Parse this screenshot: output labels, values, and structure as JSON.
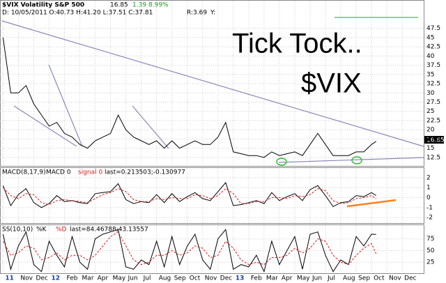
{
  "header": {
    "title": "$VIX Volatility S&P 500",
    "change": "1.39",
    "change_pct": "8.99%",
    "ohlc": "D: 10/05/2011 O:40.73 H:41.20 L:37.51 C:37.81",
    "range": "R:3.69",
    "y_label": "Y:"
  },
  "chart_data": [
    {
      "type": "line",
      "annotations": [
        "Tick Tock..",
        "$VIX"
      ],
      "x": [
        0,
        0.5,
        1,
        1.5,
        2,
        2.5,
        3,
        3.5,
        4,
        4.5,
        5,
        5.5,
        6,
        6.5,
        7,
        7.5,
        8,
        8.5,
        9,
        9.5,
        10,
        10.5,
        11,
        11.5,
        12,
        12.5,
        13,
        13.5,
        14,
        14.5,
        15,
        15.5,
        16,
        16.5,
        17,
        17.5,
        18,
        18.5,
        19,
        19.5,
        20,
        20.5,
        21,
        21.5,
        22,
        22.5,
        23,
        23.5,
        24,
        24.3
      ],
      "series": [
        {
          "name": "$VIX",
          "color": "#000000",
          "values": [
            45,
            30,
            30,
            32,
            27,
            24,
            21,
            22,
            19,
            18,
            16,
            15,
            17,
            18,
            19,
            24,
            20,
            18,
            17,
            16,
            17,
            15,
            17,
            15,
            16,
            17,
            16,
            16,
            18,
            22,
            14,
            13.5,
            13,
            13,
            12.5,
            14,
            13,
            13.5,
            14,
            13,
            16,
            19,
            16,
            13,
            13,
            13,
            14,
            14,
            16,
            16.85
          ]
        }
      ],
      "xlim": [
        -0.2,
        27.4
      ],
      "ylim": [
        10.2,
        55
      ],
      "yticks": [
        12.5,
        15,
        17.5,
        20,
        22.5,
        25,
        27.5,
        30,
        32.5,
        35,
        37.5,
        40,
        42.5,
        45,
        47.5
      ],
      "grid": true
    },
    {
      "type": "line",
      "title": "MACD(8,17,9)",
      "x": [
        0,
        0.5,
        1,
        1.5,
        2,
        2.5,
        3,
        3.5,
        4,
        4.5,
        5,
        5.5,
        6,
        6.5,
        7,
        7.5,
        8,
        8.5,
        9,
        9.5,
        10,
        10.5,
        11,
        11.5,
        12,
        12.5,
        13,
        13.5,
        14,
        14.5,
        15,
        15.5,
        16,
        16.5,
        17,
        17.5,
        18,
        18.5,
        19,
        19.5,
        20,
        20.5,
        21,
        21.5,
        22,
        22.5,
        23,
        23.5,
        24,
        24.3
      ],
      "series": [
        {
          "name": "MACD 0",
          "color": "#000000",
          "values": [
            1.2,
            -0.8,
            0.3,
            0.9,
            -0.5,
            -1.0,
            -0.6,
            0.2,
            -0.4,
            -0.3,
            -0.5,
            -0.6,
            0.4,
            0.5,
            0.6,
            1.4,
            -0.2,
            -0.6,
            -0.4,
            -0.5,
            0.3,
            -0.5,
            0.4,
            -0.4,
            0.1,
            0.5,
            -0.1,
            -0.3,
            0.6,
            1.5,
            -0.8,
            -0.7,
            -0.5,
            -0.3,
            -0.6,
            0.5,
            -0.3,
            0.1,
            0.4,
            -0.3,
            0.8,
            1.2,
            0.2,
            -0.9,
            -0.5,
            -0.4,
            0.2,
            0.1,
            0.5,
            0.21
          ]
        },
        {
          "name": "signal 0",
          "color": "#d22020",
          "values": [
            1.0,
            0.2,
            -0.1,
            0.4,
            0.3,
            -0.5,
            -0.7,
            -0.3,
            -0.2,
            -0.3,
            -0.4,
            -0.5,
            -0.1,
            0.3,
            0.5,
            0.9,
            0.6,
            -0.2,
            -0.4,
            -0.4,
            -0.1,
            -0.2,
            0.0,
            -0.1,
            -0.1,
            0.3,
            0.2,
            -0.1,
            0.2,
            0.9,
            0.4,
            -0.6,
            -0.6,
            -0.4,
            -0.4,
            0.0,
            0.0,
            -0.1,
            0.2,
            0.1,
            0.3,
            0.9,
            0.7,
            -0.3,
            -0.6,
            -0.5,
            -0.1,
            0.0,
            0.2,
            -0.13
          ]
        }
      ],
      "last_label": "last=0.213503;-0.130977",
      "xlim": [
        -0.2,
        27.4
      ],
      "ylim": [
        -2.55,
        2.97
      ],
      "yticks": [
        -2,
        -1,
        0,
        1,
        2
      ],
      "grid": true
    },
    {
      "type": "line",
      "title": "SS(10,10)",
      "x": [
        0,
        0.5,
        1,
        1.5,
        2,
        2.5,
        3,
        3.5,
        4,
        4.5,
        5,
        5.5,
        6,
        6.5,
        7,
        7.5,
        8,
        8.5,
        9,
        9.5,
        10,
        10.5,
        11,
        11.5,
        12,
        12.5,
        13,
        13.5,
        14,
        14.5,
        15,
        15.5,
        16,
        16.5,
        17,
        17.5,
        18,
        18.5,
        19,
        19.5,
        20,
        20.5,
        21,
        21.5,
        22,
        22.5,
        23,
        23.5,
        24,
        24.3
      ],
      "series": [
        {
          "name": "%K",
          "color": "#000000",
          "values": [
            85,
            10,
            60,
            90,
            20,
            5,
            70,
            40,
            15,
            80,
            25,
            10,
            75,
            85,
            90,
            95,
            15,
            10,
            30,
            20,
            70,
            15,
            80,
            20,
            60,
            85,
            30,
            10,
            75,
            95,
            10,
            20,
            15,
            40,
            5,
            70,
            20,
            50,
            80,
            10,
            85,
            90,
            40,
            5,
            30,
            20,
            80,
            60,
            85,
            84.5
          ]
        },
        {
          "name": "%D",
          "color": "#d22020",
          "values": [
            70,
            40,
            45,
            60,
            55,
            30,
            35,
            45,
            30,
            40,
            40,
            30,
            40,
            60,
            80,
            90,
            60,
            30,
            20,
            25,
            40,
            40,
            50,
            40,
            45,
            60,
            55,
            35,
            40,
            70,
            55,
            30,
            20,
            25,
            20,
            35,
            35,
            40,
            55,
            45,
            55,
            75,
            70,
            40,
            25,
            20,
            40,
            55,
            65,
            43.1
          ]
        }
      ],
      "last_label": "last=84.46788;43.13557",
      "xlim": [
        -0.2,
        27.4
      ],
      "ylim": [
        1.5,
        104.4
      ],
      "yticks": [
        25,
        50,
        75
      ],
      "grid": true,
      "xticks": [
        {
          "value": 0,
          "label": "11"
        },
        {
          "value": 1,
          "label": "Nov"
        },
        {
          "value": 2,
          "label": "Dec"
        },
        {
          "value": 3,
          "label": "12"
        },
        {
          "value": 4,
          "label": "Feb"
        },
        {
          "value": 5,
          "label": "Mar"
        },
        {
          "value": 6,
          "label": "Apr"
        },
        {
          "value": 7,
          "label": "May"
        },
        {
          "value": 8,
          "label": "Jun"
        },
        {
          "value": 9,
          "label": "Jul"
        },
        {
          "value": 10,
          "label": "Aug"
        },
        {
          "value": 11,
          "label": "Sep"
        },
        {
          "value": 12,
          "label": "Oct"
        },
        {
          "value": 13,
          "label": "Nov"
        },
        {
          "value": 14,
          "label": "Dec"
        },
        {
          "value": 15,
          "label": "13"
        },
        {
          "value": 16,
          "label": "Feb"
        },
        {
          "value": 17,
          "label": "Mar"
        },
        {
          "value": 18,
          "label": "Apr"
        },
        {
          "value": 19,
          "label": "May"
        },
        {
          "value": 20,
          "label": "Jun"
        },
        {
          "value": 21,
          "label": "Jul"
        },
        {
          "value": 22,
          "label": "Aug"
        },
        {
          "value": 23,
          "label": "Sep"
        },
        {
          "value": 24,
          "label": "Oct"
        },
        {
          "value": 25,
          "label": "Nov"
        },
        {
          "value": 26,
          "label": "Dec"
        }
      ]
    }
  ]
}
